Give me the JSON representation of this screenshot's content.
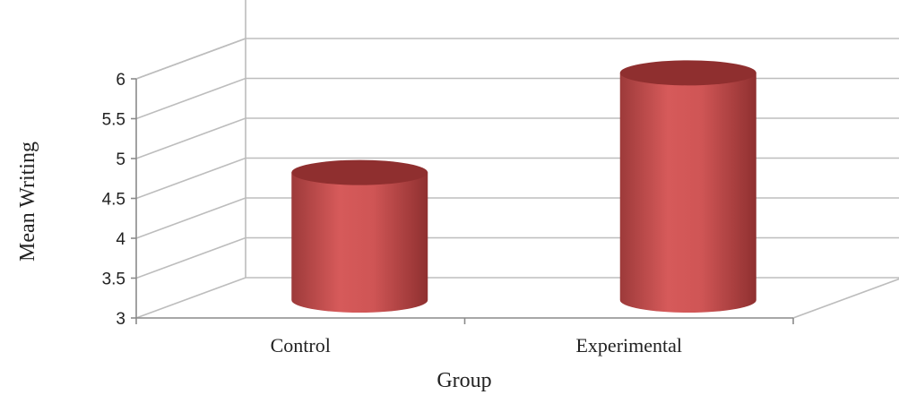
{
  "chart_data": {
    "type": "bar",
    "style": "3d-cylinder",
    "categories": [
      "Control",
      "Experimental"
    ],
    "values": [
      4.6,
      5.85
    ],
    "xlabel": "Group",
    "ylabel": "Mean Writing",
    "ylim": [
      3,
      6
    ],
    "yticks": [
      "3",
      "3.5",
      "4",
      "4.5",
      "5",
      "5.5",
      "6"
    ],
    "grid": true,
    "bar_color": "#c0494a",
    "bar_top_color": "#8f2f2f"
  }
}
